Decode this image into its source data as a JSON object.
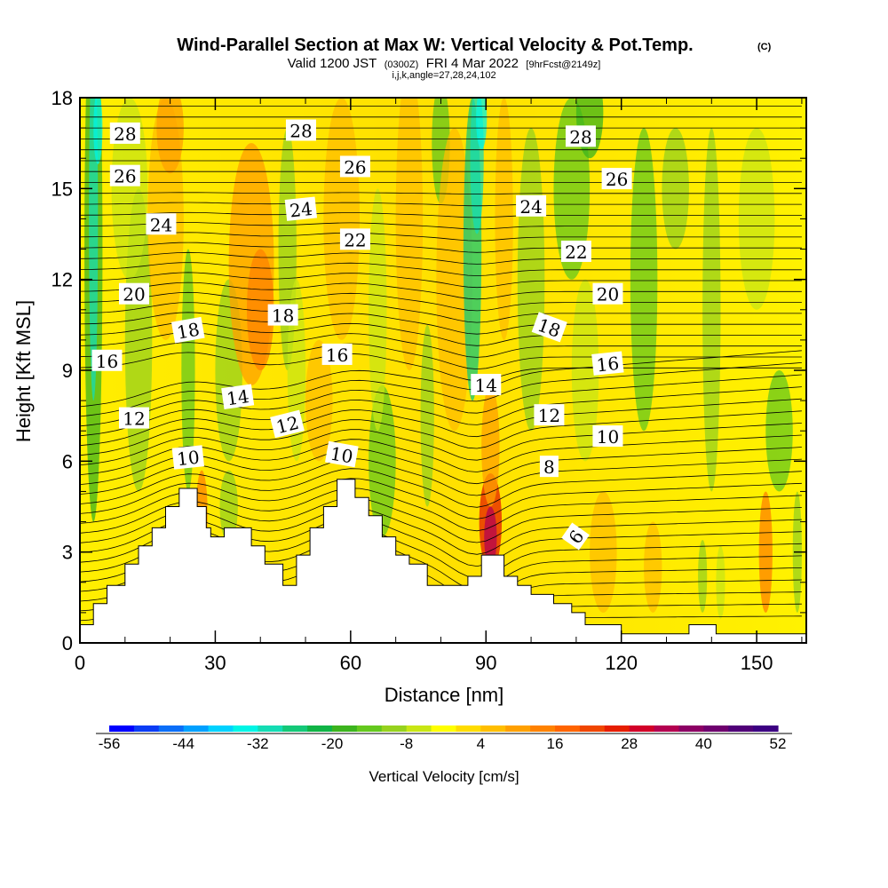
{
  "header": {
    "title": "Wind-Parallel Section at Max W: Vertical Velocity & Pot.Temp.",
    "copyright": "(C)",
    "valid_prefix": "Valid 1200 JST",
    "valid_utc": "(0300Z)",
    "valid_date": "FRI 4 Mar 2022",
    "forecast": "[9hrFcst@2149z]",
    "grid_info": "i,j,k,angle=27,28,24,102"
  },
  "chart_data": {
    "type": "heatmap",
    "title": "Wind-Parallel Section at Max W: Vertical Velocity & Pot.Temp.",
    "xlabel": "Distance [nm]",
    "ylabel": "Height [Kft MSL]",
    "xlim": [
      0,
      161
    ],
    "ylim": [
      0,
      18
    ],
    "x_ticks": [
      "0",
      "30",
      "60",
      "90",
      "120",
      "150"
    ],
    "y_ticks": [
      "0",
      "3",
      "6",
      "9",
      "12",
      "15",
      "18"
    ],
    "terrain": [
      [
        0,
        0.6
      ],
      [
        3,
        0.6
      ],
      [
        3,
        1.3
      ],
      [
        6,
        1.3
      ],
      [
        6,
        1.9
      ],
      [
        10,
        1.9
      ],
      [
        10,
        2.6
      ],
      [
        13,
        2.6
      ],
      [
        13,
        3.2
      ],
      [
        16,
        3.2
      ],
      [
        16,
        3.8
      ],
      [
        19,
        3.8
      ],
      [
        19,
        4.5
      ],
      [
        22,
        4.5
      ],
      [
        22,
        5.1
      ],
      [
        26,
        5.1
      ],
      [
        26,
        4.5
      ],
      [
        28,
        4.5
      ],
      [
        28,
        3.8
      ],
      [
        29,
        3.8
      ],
      [
        29,
        3.5
      ],
      [
        32,
        3.5
      ],
      [
        32,
        3.8
      ],
      [
        38,
        3.8
      ],
      [
        38,
        3.2
      ],
      [
        41,
        3.2
      ],
      [
        41,
        2.6
      ],
      [
        45,
        2.6
      ],
      [
        45,
        1.9
      ],
      [
        48,
        1.9
      ],
      [
        48,
        2.9
      ],
      [
        51,
        2.9
      ],
      [
        51,
        3.8
      ],
      [
        54,
        3.8
      ],
      [
        54,
        4.5
      ],
      [
        57,
        4.5
      ],
      [
        57,
        5.4
      ],
      [
        61,
        5.4
      ],
      [
        61,
        4.8
      ],
      [
        64,
        4.8
      ],
      [
        64,
        4.2
      ],
      [
        67,
        4.2
      ],
      [
        67,
        3.5
      ],
      [
        70,
        3.5
      ],
      [
        70,
        2.9
      ],
      [
        73,
        2.9
      ],
      [
        73,
        2.6
      ],
      [
        77,
        2.6
      ],
      [
        77,
        1.9
      ],
      [
        86,
        1.9
      ],
      [
        86,
        2.2
      ],
      [
        89,
        2.2
      ],
      [
        89,
        2.9
      ],
      [
        94,
        2.9
      ],
      [
        94,
        2.2
      ],
      [
        97,
        2.2
      ],
      [
        97,
        1.9
      ],
      [
        100,
        1.9
      ],
      [
        100,
        1.6
      ],
      [
        105,
        1.6
      ],
      [
        105,
        1.3
      ],
      [
        109,
        1.3
      ],
      [
        109,
        1.0
      ],
      [
        112,
        1.0
      ],
      [
        112,
        0.6
      ],
      [
        120,
        0.6
      ],
      [
        120,
        0.3
      ],
      [
        135,
        0.3
      ],
      [
        135,
        0.6
      ],
      [
        141,
        0.6
      ],
      [
        141,
        0.3
      ],
      [
        161,
        0.3
      ]
    ],
    "colorbar": {
      "label": "Vertical Velocity [cm/s]",
      "min": -56,
      "max": 52,
      "step": 4,
      "tick_labels": [
        "-56",
        "-44",
        "-32",
        "-20",
        "-8",
        "4",
        "16",
        "28",
        "40",
        "52"
      ],
      "colors": [
        "#0000ff",
        "#0a3cf5",
        "#0a6ef8",
        "#00a0ff",
        "#00d2ff",
        "#00f5e6",
        "#14dcb4",
        "#14c878",
        "#10b446",
        "#3cb41e",
        "#64c81e",
        "#96d21e",
        "#c8e614",
        "#ffff00",
        "#ffdc00",
        "#ffbe00",
        "#ffa000",
        "#ff8200",
        "#ff6400",
        "#f04600",
        "#e61e00",
        "#d20028",
        "#b40050",
        "#8c0064",
        "#6e006e",
        "#500078",
        "#3c0082"
      ]
    },
    "contour_labels": [
      {
        "text": "28",
        "x": 10,
        "y": 16.8,
        "angle": 0
      },
      {
        "text": "26",
        "x": 10,
        "y": 15.4,
        "angle": 0
      },
      {
        "text": "24",
        "x": 18,
        "y": 13.8,
        "angle": 0
      },
      {
        "text": "20",
        "x": 12,
        "y": 11.5,
        "angle": 0
      },
      {
        "text": "18",
        "x": 24,
        "y": 10.3,
        "angle": -10
      },
      {
        "text": "16",
        "x": 6,
        "y": 9.3,
        "angle": 0
      },
      {
        "text": "12",
        "x": 12,
        "y": 7.4,
        "angle": 0
      },
      {
        "text": "14",
        "x": 35,
        "y": 8.1,
        "angle": -8
      },
      {
        "text": "10",
        "x": 24,
        "y": 6.1,
        "angle": -6
      },
      {
        "text": "28",
        "x": 49,
        "y": 16.9,
        "angle": 0
      },
      {
        "text": "24",
        "x": 49,
        "y": 14.3,
        "angle": -6
      },
      {
        "text": "18",
        "x": 45,
        "y": 10.8,
        "angle": 0
      },
      {
        "text": "12",
        "x": 46,
        "y": 7.2,
        "angle": -14
      },
      {
        "text": "26",
        "x": 61,
        "y": 15.7,
        "angle": 0
      },
      {
        "text": "22",
        "x": 61,
        "y": 13.3,
        "angle": 0
      },
      {
        "text": "16",
        "x": 57,
        "y": 9.5,
        "angle": 0
      },
      {
        "text": "10",
        "x": 58,
        "y": 6.2,
        "angle": 10
      },
      {
        "text": "14",
        "x": 90,
        "y": 8.5,
        "angle": 0
      },
      {
        "text": "24",
        "x": 100,
        "y": 14.4,
        "angle": 0
      },
      {
        "text": "18",
        "x": 104,
        "y": 10.4,
        "angle": 20
      },
      {
        "text": "12",
        "x": 104,
        "y": 7.5,
        "angle": 0
      },
      {
        "text": "8",
        "x": 104,
        "y": 5.8,
        "angle": 0
      },
      {
        "text": "28",
        "x": 111,
        "y": 16.7,
        "angle": 0
      },
      {
        "text": "22",
        "x": 110,
        "y": 12.9,
        "angle": 0
      },
      {
        "text": "26",
        "x": 119,
        "y": 15.3,
        "angle": 0
      },
      {
        "text": "20",
        "x": 117,
        "y": 11.5,
        "angle": 0
      },
      {
        "text": "16",
        "x": 117,
        "y": 9.2,
        "angle": -6
      },
      {
        "text": "10",
        "x": 117,
        "y": 6.8,
        "angle": 0
      },
      {
        "text": "6",
        "x": 110,
        "y": 3.5,
        "angle": -55
      }
    ]
  }
}
